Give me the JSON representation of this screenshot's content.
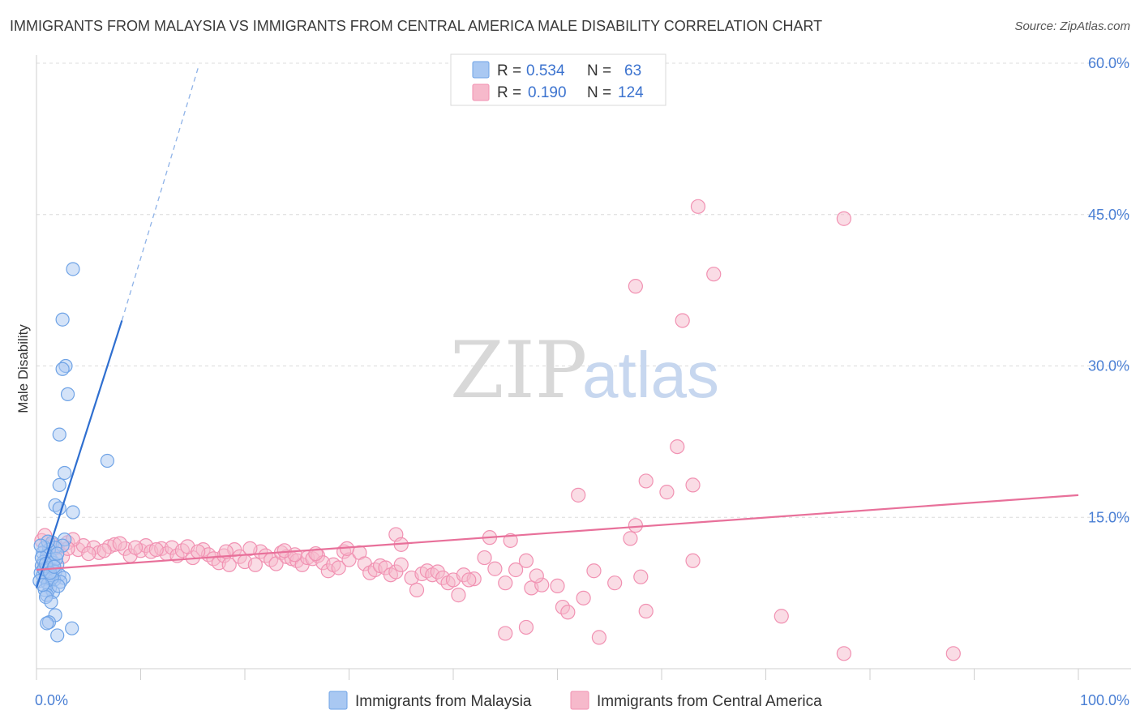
{
  "header": {
    "title": "IMMIGRANTS FROM MALAYSIA VS IMMIGRANTS FROM CENTRAL AMERICA MALE DISABILITY CORRELATION CHART",
    "source": "Source: ZipAtlas.com"
  },
  "watermark": {
    "zip": "ZIP",
    "atlas": "atlas"
  },
  "legend": {
    "rows": [
      {
        "r_label": "R =",
        "r_value": "0.534",
        "n_label": "N =",
        "n_value": "63",
        "color": "#a9c8f2"
      },
      {
        "r_label": "R =",
        "r_value": "0.190",
        "n_label": "N =",
        "n_value": "124",
        "color": "#f6b9cb"
      }
    ]
  },
  "chart_data": {
    "type": "scatter",
    "title": "IMMIGRANTS FROM MALAYSIA VS IMMIGRANTS FROM CENTRAL AMERICA MALE DISABILITY CORRELATION CHART",
    "xlabel": "",
    "ylabel": "Male Disability",
    "xlim": [
      0,
      100
    ],
    "ylim": [
      0,
      60
    ],
    "x_tick_labels": [
      "0.0%",
      "100.0%"
    ],
    "y_ticks": [
      15,
      30,
      45,
      60
    ],
    "y_tick_labels": [
      "15.0%",
      "30.0%",
      "45.0%",
      "60.0%"
    ],
    "grid": true,
    "legend_position": "top-center",
    "series": [
      {
        "name": "Immigrants from Malaysia",
        "color": "#6fa3e6",
        "fill": "#a9c8f2",
        "R": 0.534,
        "N": 63,
        "trend": {
          "x0": 0,
          "y0": 8.0,
          "x1": 8.2,
          "y1": 34.5,
          "dash_to_x": 15.5,
          "dash_to_y": 59.5
        },
        "points": [
          [
            3.5,
            39.6
          ],
          [
            2.5,
            34.6
          ],
          [
            2.8,
            30.0
          ],
          [
            2.5,
            29.7
          ],
          [
            3.0,
            27.2
          ],
          [
            2.2,
            23.2
          ],
          [
            6.8,
            20.6
          ],
          [
            2.7,
            19.4
          ],
          [
            2.2,
            18.2
          ],
          [
            1.8,
            16.2
          ],
          [
            2.2,
            15.9
          ],
          [
            3.5,
            15.5
          ],
          [
            2.7,
            12.8
          ],
          [
            1.5,
            12.5
          ],
          [
            2.5,
            12.2
          ],
          [
            1.8,
            12.0
          ],
          [
            0.8,
            12.0
          ],
          [
            1.2,
            11.8
          ],
          [
            0.6,
            11.5
          ],
          [
            1.0,
            11.2
          ],
          [
            1.4,
            10.8
          ],
          [
            0.7,
            10.6
          ],
          [
            1.6,
            10.5
          ],
          [
            2.0,
            10.3
          ],
          [
            0.5,
            10.2
          ],
          [
            1.0,
            10.0
          ],
          [
            1.5,
            9.8
          ],
          [
            0.8,
            9.7
          ],
          [
            1.8,
            9.6
          ],
          [
            0.4,
            9.5
          ],
          [
            1.2,
            9.4
          ],
          [
            2.2,
            9.3
          ],
          [
            0.6,
            9.2
          ],
          [
            1.4,
            9.1
          ],
          [
            2.6,
            9.0
          ],
          [
            0.9,
            8.9
          ],
          [
            1.7,
            8.8
          ],
          [
            0.3,
            8.7
          ],
          [
            2.3,
            8.6
          ],
          [
            1.1,
            8.4
          ],
          [
            1.3,
            8.0
          ],
          [
            0.8,
            7.8
          ],
          [
            1.6,
            7.6
          ],
          [
            1.0,
            7.3
          ],
          [
            0.9,
            7.1
          ],
          [
            1.4,
            6.6
          ],
          [
            1.8,
            5.3
          ],
          [
            1.2,
            4.6
          ],
          [
            1.0,
            4.5
          ],
          [
            3.4,
            4.0
          ],
          [
            2.0,
            3.3
          ],
          [
            0.7,
            9.9
          ],
          [
            1.9,
            10.9
          ],
          [
            0.5,
            11.0
          ],
          [
            1.1,
            12.6
          ],
          [
            2.0,
            11.4
          ],
          [
            0.9,
            10.4
          ],
          [
            1.5,
            9.0
          ],
          [
            0.6,
            8.3
          ],
          [
            1.3,
            9.5
          ],
          [
            2.1,
            8.2
          ],
          [
            1.7,
            10.1
          ],
          [
            0.4,
            12.2
          ]
        ]
      },
      {
        "name": "Immigrants from Central America",
        "color": "#f191b2",
        "fill": "#f6b9cb",
        "R": 0.19,
        "N": 124,
        "trend": {
          "x0": 0,
          "y0": 9.8,
          "x1": 100,
          "y1": 17.2
        },
        "points": [
          [
            63.5,
            45.8
          ],
          [
            77.5,
            44.6
          ],
          [
            65.0,
            39.1
          ],
          [
            57.5,
            37.9
          ],
          [
            62.0,
            34.5
          ],
          [
            61.5,
            22.0
          ],
          [
            58.5,
            18.6
          ],
          [
            63.0,
            18.2
          ],
          [
            60.5,
            17.5
          ],
          [
            52.0,
            17.2
          ],
          [
            57.5,
            14.2
          ],
          [
            34.5,
            13.3
          ],
          [
            43.5,
            13.0
          ],
          [
            45.5,
            12.7
          ],
          [
            57.0,
            12.9
          ],
          [
            35.0,
            12.3
          ],
          [
            0.5,
            12.7
          ],
          [
            1.5,
            12.3
          ],
          [
            2.0,
            12.0
          ],
          [
            3.0,
            12.5
          ],
          [
            4.0,
            11.8
          ],
          [
            4.5,
            12.2
          ],
          [
            5.5,
            12.0
          ],
          [
            6.0,
            11.5
          ],
          [
            7.0,
            12.1
          ],
          [
            7.5,
            12.3
          ],
          [
            8.5,
            11.9
          ],
          [
            9.0,
            11.2
          ],
          [
            10.0,
            11.7
          ],
          [
            10.5,
            12.2
          ],
          [
            11.0,
            11.6
          ],
          [
            12.0,
            11.9
          ],
          [
            12.5,
            11.4
          ],
          [
            13.0,
            12.0
          ],
          [
            13.5,
            11.2
          ],
          [
            14.0,
            11.7
          ],
          [
            15.0,
            11.0
          ],
          [
            16.0,
            11.8
          ],
          [
            16.5,
            11.3
          ],
          [
            17.0,
            10.9
          ],
          [
            17.5,
            10.5
          ],
          [
            18.0,
            11.2
          ],
          [
            18.5,
            10.3
          ],
          [
            19.0,
            11.8
          ],
          [
            19.5,
            11.1
          ],
          [
            20.0,
            10.6
          ],
          [
            21.0,
            10.3
          ],
          [
            21.5,
            11.6
          ],
          [
            22.0,
            11.2
          ],
          [
            22.5,
            10.8
          ],
          [
            23.0,
            10.4
          ],
          [
            23.5,
            11.5
          ],
          [
            24.0,
            11.1
          ],
          [
            24.5,
            10.9
          ],
          [
            25.0,
            10.7
          ],
          [
            25.5,
            10.3
          ],
          [
            26.0,
            11.0
          ],
          [
            26.5,
            10.9
          ],
          [
            27.0,
            11.2
          ],
          [
            27.5,
            10.5
          ],
          [
            28.0,
            9.7
          ],
          [
            28.5,
            10.3
          ],
          [
            29.0,
            10.0
          ],
          [
            29.5,
            11.6
          ],
          [
            30.0,
            10.8
          ],
          [
            31.0,
            11.5
          ],
          [
            31.5,
            10.4
          ],
          [
            32.0,
            9.5
          ],
          [
            32.5,
            9.8
          ],
          [
            33.0,
            10.2
          ],
          [
            33.5,
            10.0
          ],
          [
            34.0,
            9.3
          ],
          [
            34.5,
            9.6
          ],
          [
            35.0,
            10.3
          ],
          [
            36.0,
            9.0
          ],
          [
            36.5,
            7.8
          ],
          [
            37.0,
            9.4
          ],
          [
            37.5,
            9.7
          ],
          [
            38.0,
            9.3
          ],
          [
            38.5,
            9.6
          ],
          [
            39.0,
            9.0
          ],
          [
            39.5,
            8.5
          ],
          [
            40.0,
            8.8
          ],
          [
            40.5,
            7.3
          ],
          [
            41.0,
            9.3
          ],
          [
            42.0,
            8.9
          ],
          [
            43.0,
            11.0
          ],
          [
            44.0,
            9.9
          ],
          [
            45.0,
            8.5
          ],
          [
            46.0,
            9.8
          ],
          [
            47.0,
            10.7
          ],
          [
            47.5,
            8.0
          ],
          [
            48.5,
            8.3
          ],
          [
            50.0,
            8.2
          ],
          [
            50.5,
            6.1
          ],
          [
            51.0,
            5.6
          ],
          [
            52.5,
            7.0
          ],
          [
            53.5,
            9.7
          ],
          [
            55.5,
            8.5
          ],
          [
            58.0,
            9.1
          ],
          [
            58.5,
            5.7
          ],
          [
            63.0,
            10.7
          ],
          [
            71.5,
            5.2
          ],
          [
            47.0,
            4.1
          ],
          [
            45.0,
            3.5
          ],
          [
            54.0,
            3.1
          ],
          [
            77.5,
            1.5
          ],
          [
            88.0,
            1.5
          ],
          [
            0.8,
            13.2
          ],
          [
            1.2,
            11.5
          ],
          [
            2.5,
            11.1
          ],
          [
            3.5,
            12.8
          ],
          [
            6.5,
            11.7
          ],
          [
            8.0,
            12.4
          ],
          [
            9.5,
            12.0
          ],
          [
            11.5,
            11.8
          ],
          [
            14.5,
            12.1
          ],
          [
            15.5,
            11.6
          ],
          [
            20.5,
            11.9
          ],
          [
            23.8,
            11.7
          ],
          [
            26.8,
            11.4
          ],
          [
            29.8,
            11.9
          ],
          [
            41.5,
            8.8
          ],
          [
            48.0,
            9.2
          ],
          [
            3.0,
            11.9
          ],
          [
            5.0,
            11.4
          ],
          [
            18.2,
            11.6
          ],
          [
            24.8,
            11.3
          ]
        ]
      }
    ]
  },
  "bottom_legend": {
    "items": [
      {
        "label": "Immigrants from Malaysia",
        "color": "#a9c8f2",
        "stroke": "#6fa3e6"
      },
      {
        "label": "Immigrants from Central America",
        "color": "#f6b9cb",
        "stroke": "#f191b2"
      }
    ]
  }
}
